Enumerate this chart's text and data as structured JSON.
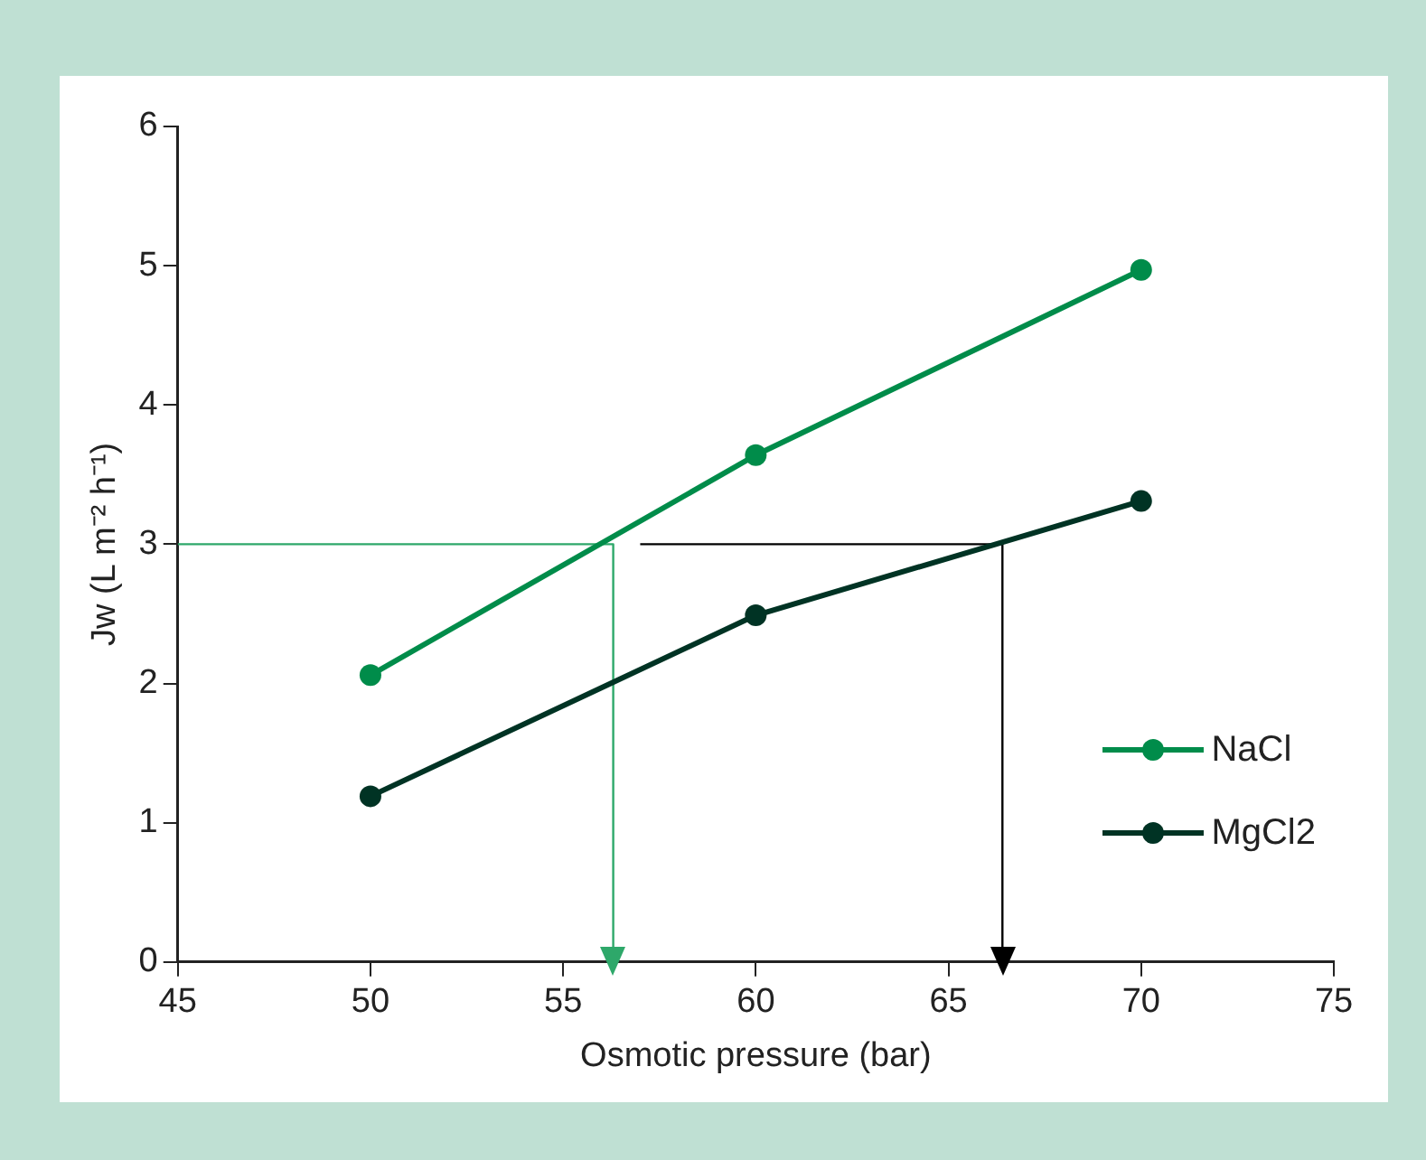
{
  "chart_data": {
    "type": "line",
    "xlabel": "Osmotic pressure (bar)",
    "ylabel": "Jw (L m⁻² h⁻¹)",
    "xlim": [
      45,
      75
    ],
    "xticks": [
      45,
      50,
      55,
      60,
      65,
      70,
      75
    ],
    "ylim": [
      0,
      6
    ],
    "yticks": [
      0,
      1,
      2,
      3,
      4,
      5,
      6
    ],
    "grid": false,
    "legend": "right",
    "marker": "circle",
    "line_style": "solid",
    "series": [
      {
        "name": "NaCl",
        "color": "#008c4a",
        "x": [
          50,
          60,
          70
        ],
        "values": [
          2.06,
          3.64,
          4.97
        ]
      },
      {
        "name": "MgCl2",
        "color": "#003324",
        "x": [
          50,
          60,
          70
        ],
        "values": [
          1.19,
          2.49,
          3.31
        ]
      },
      {
        "color": "#2ea86a",
        "x": [
          45,
          56.3,
          56.3
        ],
        "values": [
          3,
          3,
          0
        ],
        "marker": "none"
      },
      {
        "color": "#000000",
        "x": [
          57,
          66.4,
          66.4
        ],
        "values": [
          3,
          3,
          0
        ],
        "marker": "none"
      }
    ]
  }
}
